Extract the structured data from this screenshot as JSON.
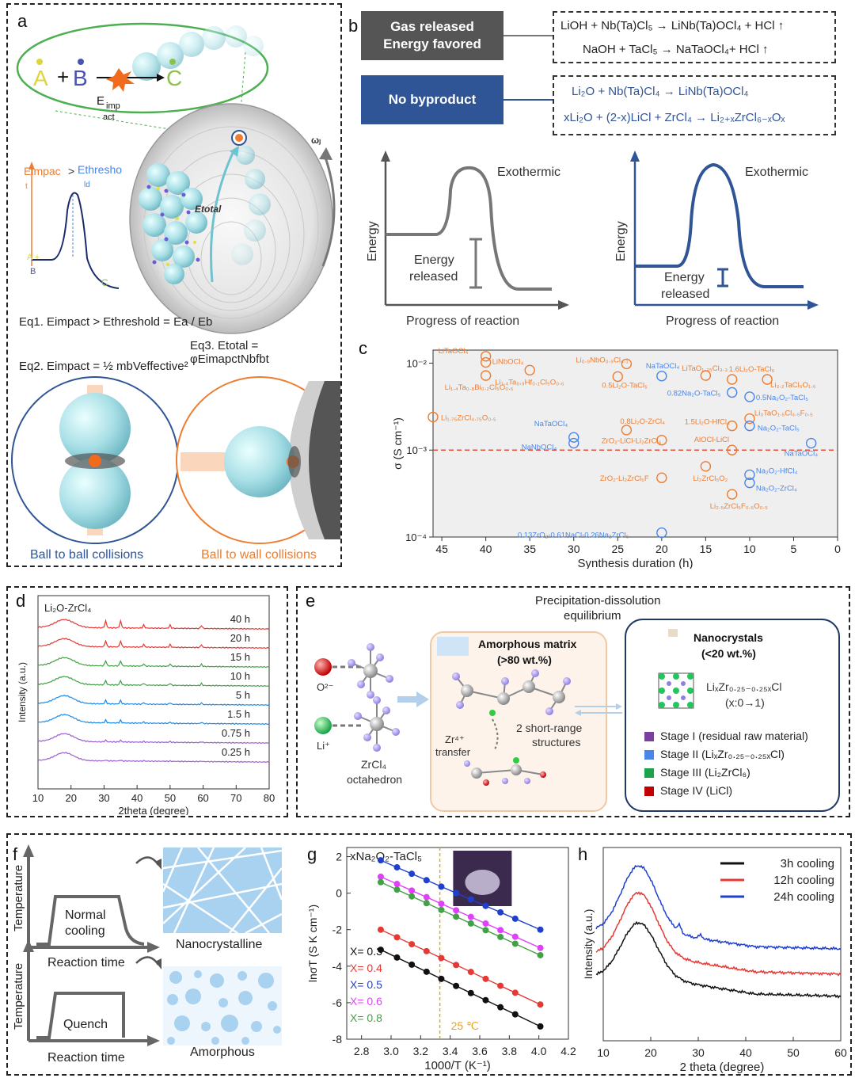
{
  "panels": {
    "a": "a",
    "b": "b",
    "c": "c",
    "d": "d",
    "e": "e",
    "f": "f",
    "g": "g",
    "h": "h"
  },
  "a": {
    "A": "A",
    "plus": "+",
    "B": "B",
    "C": "C",
    "eimp": "E",
    "eimp_sub": "imp",
    "act": "act",
    "omega": "ωⱼ",
    "etotal": "Etotal",
    "e_impact": "Eimpac",
    "t_sub": "t",
    "gt": ">",
    "e_thresh": "Ethresho",
    "ld": "ld",
    "curve_A": "A +",
    "curve_B": "B",
    "curve_C": "C",
    "eq1": "Eq1. Eimpact > Ethreshold = Ea / Eb",
    "eq3": "Eq3. Etotal = φEimapctNbfbt",
    "eq2": "Eq2. Eimpact = ½ mbVeffective²",
    "ball_ball": "Ball to ball collisions",
    "ball_wall": "Ball to wall collisions",
    "colors": {
      "blue": "#2f5597",
      "orange": "#ed7d31",
      "green": "#4caf50"
    }
  },
  "b": {
    "gas": "Gas released\nEnergy favored",
    "nobyp": "No byproduct",
    "eq_gas_1": "LiOH  +  Nb(Ta)Cl₅ → LiNb(Ta)OCl₄ + HCl ↑",
    "eq_gas_2": "NaOH  +  TaCl₅ → NaTaOCl₄+ HCl ↑",
    "eq_nb_1": "Li₂O + Nb(Ta)Cl₄ → LiNb(Ta)OCl₄",
    "eq_nb_2": "xLi₂O + (2-x)LiCl  + ZrCl₄ →  Li₂₊ₓZrCl₆₋ₓOₓ",
    "left_exo": "Exothermic",
    "left_released": "Energy\nreleased",
    "left_xlabel": "Progress of reaction",
    "left_ylabel": "Energy",
    "right_exo": "Exothermic",
    "right_released": "Energy\nreleased",
    "right_xlabel": "Progress of reaction",
    "right_ylabel": "Energy"
  },
  "chart_data": [
    {
      "id": "c",
      "type": "scatter",
      "xlabel": "Synthesis duration (h)",
      "ylabel": "σ (S cm⁻¹)",
      "xlim": [
        46,
        0
      ],
      "ylim_log10": [
        -4,
        -1.85
      ],
      "xticks": [
        45,
        40,
        35,
        30,
        25,
        20,
        15,
        10,
        5,
        0
      ],
      "yticks": [
        "10⁻⁴",
        "10⁻³",
        "10⁻²"
      ],
      "reference_line": {
        "y": 0.001,
        "style": "dashed",
        "color": "#e74c3c"
      },
      "series": [
        {
          "name": "Li",
          "color": "#ed7d31",
          "points": [
            {
              "x": 46,
              "y": 0.0024,
              "label": "Li₁.₇₅ZrCl₄.₇₅O₀.₅"
            },
            {
              "x": 40,
              "y": 0.012,
              "label": "LiTaOCl₄"
            },
            {
              "x": 40,
              "y": 0.0102,
              "label": "LiNbOCl₄"
            },
            {
              "x": 40,
              "y": 0.0072,
              "label": "Li₁.₄Ta₀.₈Bi₀.₂Cl₅O₀.₆"
            },
            {
              "x": 35,
              "y": 0.0083,
              "label": "Li₁.₄Ta₀.₉Hf₀.₁Cl₅O₀.₆"
            },
            {
              "x": 24,
              "y": 0.0098,
              "label": "Li₀.₉NbO₀.₉Cl₄.₁"
            },
            {
              "x": 25,
              "y": 0.007,
              "label": "0.5Li₂O-TaCl₅"
            },
            {
              "x": 24,
              "y": 0.0017,
              "label": "0.8Li₂O-ZrCl₄"
            },
            {
              "x": 20,
              "y": 0.0013,
              "label": "ZrO₂-LiCl-Li₂ZrCl₆"
            },
            {
              "x": 15,
              "y": 0.0072,
              "label": "LiTaO₁.₃₅Cl₃.₃"
            },
            {
              "x": 12,
              "y": 0.0065,
              "label": "1.6Li₂O-TaCl₅"
            },
            {
              "x": 8,
              "y": 0.0065,
              "label": "Li₃.₂TaCl₅O₁.₆"
            },
            {
              "x": 12,
              "y": 0.0019,
              "label": "1.5Li₂O-HfCl₄"
            },
            {
              "x": 10,
              "y": 0.0023,
              "label": "Li₃TaO₁.₅Cl₄.₅F₀.₅"
            },
            {
              "x": 12,
              "y": 0.001,
              "label": "AlOCl-LiCl"
            },
            {
              "x": 15,
              "y": 0.00065,
              "label": "Li₂ZrCl₅O₂"
            },
            {
              "x": 12,
              "y": 0.00031,
              "label": "Li₂.₅ZrCl₅F₀.₅O₀.₅"
            },
            {
              "x": 20,
              "y": 0.00048,
              "label": "ZrO₂-Li₂ZrCl₅F"
            }
          ]
        },
        {
          "name": "Na",
          "color": "#4a86e8",
          "points": [
            {
              "x": 20,
              "y": 0.0071,
              "label": "NaTaOCl₄"
            },
            {
              "x": 12,
              "y": 0.0046,
              "label": "0.82Na₂O-TaCl₅"
            },
            {
              "x": 10,
              "y": 0.0041,
              "label": "0.5Na₂O₂-TaCl₅"
            },
            {
              "x": 10,
              "y": 0.0019,
              "label": "Na₂O₂-TaCl₅"
            },
            {
              "x": 30,
              "y": 0.0014,
              "label": "NaTaOCl₄"
            },
            {
              "x": 30,
              "y": 0.0012,
              "label": "NaNbOCl₄"
            },
            {
              "x": 3,
              "y": 0.0012,
              "label": "NaTaOCl₄"
            },
            {
              "x": 10,
              "y": 0.00052,
              "label": "Na₂O₂-HfCl₄"
            },
            {
              "x": 10,
              "y": 0.00042,
              "label": "Na₂O₂-ZrCl₄"
            },
            {
              "x": 20,
              "y": 0.000112,
              "label": "0.13ZrO₂-0.61NaCl-0.26Na₂ZrCl₆"
            }
          ]
        }
      ]
    },
    {
      "id": "d",
      "type": "line",
      "title": "Li₂O-ZrCl₄",
      "xlabel": "2theta (degree)",
      "ylabel": "Intensity (a.u.)",
      "xlim": [
        10,
        80
      ],
      "xticks": [
        10,
        20,
        30,
        40,
        50,
        60,
        70,
        80
      ],
      "series": [
        {
          "name": "40 h",
          "color": "#e53935"
        },
        {
          "name": "20 h",
          "color": "#e53935"
        },
        {
          "name": "15 h",
          "color": "#43a047"
        },
        {
          "name": "10 h",
          "color": "#43a047"
        },
        {
          "name": "5 h",
          "color": "#1e88e5"
        },
        {
          "name": "1.5 h",
          "color": "#1e88e5"
        },
        {
          "name": "0.75 h",
          "color": "#9c5fd0"
        },
        {
          "name": "0.25 h",
          "color": "#9c5fd0"
        }
      ],
      "peaks": [
        18,
        30.5,
        35,
        42,
        50,
        59.5
      ]
    },
    {
      "id": "g",
      "type": "line",
      "title": "xNa₂O₂-TaCl₅",
      "xlabel": "1000/T (K⁻¹)",
      "ylabel": "lnσT (S K cm⁻¹)",
      "xlim": [
        2.7,
        4.2
      ],
      "ylim": [
        -8,
        2.5
      ],
      "xticks": [
        2.8,
        3.0,
        3.2,
        3.4,
        3.6,
        3.8,
        4.0,
        4.2
      ],
      "yticks": [
        -8,
        -6,
        -4,
        -2,
        0,
        2
      ],
      "vline": {
        "x": 3.33,
        "label": "25 ℃"
      },
      "x": [
        2.93,
        3.04,
        3.14,
        3.24,
        3.34,
        3.44,
        3.54,
        3.64,
        3.74,
        3.84,
        4.01
      ],
      "series": [
        {
          "name": "X= 0.3",
          "color": "#111111",
          "start": -3.1,
          "end": -7.3
        },
        {
          "name": "X= 0.4",
          "color": "#e53935",
          "start": -2.0,
          "end": -6.1
        },
        {
          "name": "X= 0.5",
          "color": "#1f3fcf",
          "start": 1.8,
          "end": -2.0
        },
        {
          "name": "X= 0.6",
          "color": "#e040fb",
          "start": 0.9,
          "end": -3.0
        },
        {
          "name": "X= 0.8",
          "color": "#43a047",
          "start": 0.6,
          "end": -3.4
        }
      ]
    },
    {
      "id": "h",
      "type": "line",
      "xlabel": "2 theta (degree)",
      "ylabel": "Intensity (a.u.)",
      "xlim": [
        10,
        60
      ],
      "xticks": [
        10,
        20,
        30,
        40,
        50,
        60
      ],
      "series": [
        {
          "name": "3h cooling",
          "color": "#111111"
        },
        {
          "name": "12h cooling",
          "color": "#e53935"
        },
        {
          "name": "24h cooling",
          "color": "#1f3fcf"
        }
      ]
    }
  ],
  "e": {
    "title1": "Precipitation-dissolution",
    "title2": "equilibrium",
    "o2": "O²⁻",
    "li": "Li⁺",
    "zrcl4_1": "ZrCl₄",
    "zrcl4_2": "octahedron",
    "amorph1": "Amorphous matrix",
    "amorph2": "(>80 wt.%)",
    "zr1": "Zr⁴⁺",
    "zr2": "transfer",
    "sr1": "2 short-range",
    "sr2": "structures",
    "nano1": "Nanocrystals",
    "nano2": "(<20 wt.%)",
    "formula": "LiₓZr₀.₂₅₋₀.₂₅ₓCl",
    "formula2": "(x:0→1)",
    "stages": [
      {
        "label": "Stage I (residual raw material)",
        "color": "#7b3fa0"
      },
      {
        "label": "Stage II (LiₓZr₀.₂₅₋₀.₂₅ₓCl)",
        "color": "#4a86e8"
      },
      {
        "label": "Stage III (Li₂ZrCl₆)",
        "color": "#1aa34a"
      },
      {
        "label": "Stage IV (LiCl)",
        "color": "#c00000"
      }
    ]
  },
  "f": {
    "ylabel": "Temperature",
    "xlabel": "Reaction time",
    "normal": "Normal\ncooling",
    "quench": "Quench",
    "nano": "Nanocrystalline",
    "amorph": "Amorphous"
  }
}
